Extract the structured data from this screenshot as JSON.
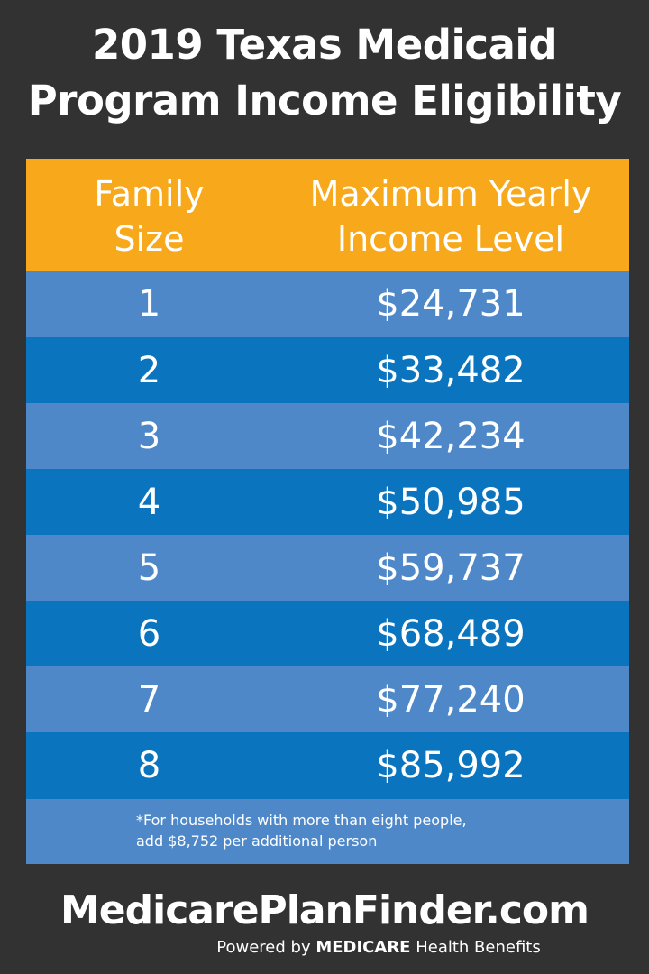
{
  "title": {
    "line1": "2019 Texas Medicaid",
    "line2": "Program Income Eligibility"
  },
  "table": {
    "headers": {
      "family_size": [
        "Family",
        "Size"
      ],
      "income": [
        "Maximum Yearly",
        "Income Level"
      ]
    },
    "rows": [
      {
        "size": "1",
        "income": "$24,731"
      },
      {
        "size": "2",
        "income": "$33,482"
      },
      {
        "size": "3",
        "income": "$42,234"
      },
      {
        "size": "4",
        "income": "$50,985"
      },
      {
        "size": "5",
        "income": "$59,737"
      },
      {
        "size": "6",
        "income": "$68,489"
      },
      {
        "size": "7",
        "income": "$77,240"
      },
      {
        "size": "8",
        "income": "$85,992"
      }
    ],
    "footnote": {
      "line1": "*For households with more than eight people,",
      "line2": "add $8,752 per additional person"
    }
  },
  "brand": {
    "name": "MedicarePlanFinder.com",
    "tagline_prefix": "Powered by",
    "tagline_bold": "MEDICARE",
    "tagline_suffix": "Health Benefits"
  },
  "colors": {
    "background": "#323232",
    "header": "#f7a81b",
    "row_light": "#4f88c8",
    "row_dark": "#0a74bf",
    "text": "#ffffff"
  }
}
